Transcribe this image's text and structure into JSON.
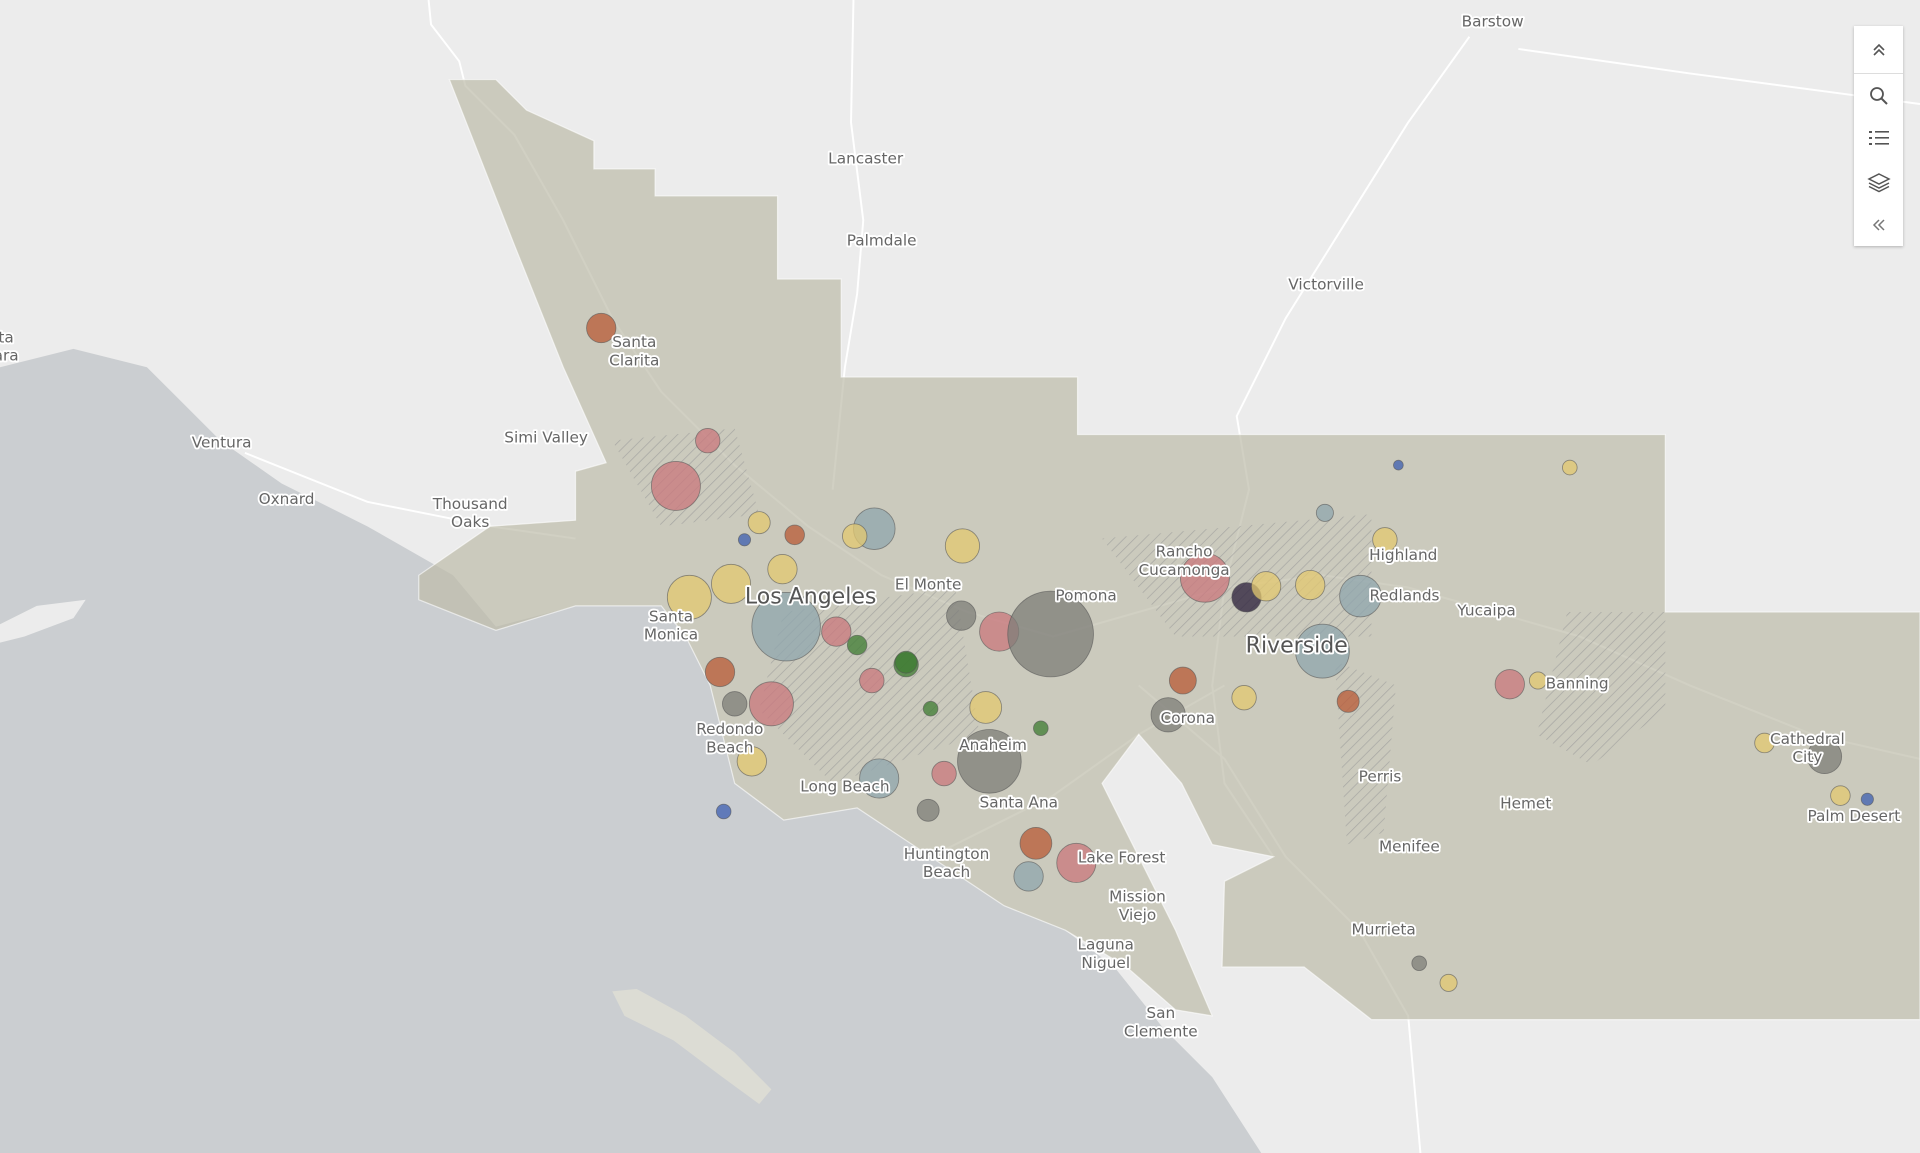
{
  "map": {
    "labels": [
      {
        "lines": [
          "Barstow"
        ]
      },
      {
        "lines": [
          "Lancaster"
        ]
      },
      {
        "lines": [
          "Palmdale"
        ]
      },
      {
        "lines": [
          "Victorville"
        ]
      },
      {
        "lines": [
          "Santa",
          "Clarita"
        ]
      },
      {
        "lines": [
          "Simi Valley"
        ]
      },
      {
        "lines": [
          "Ventura"
        ]
      },
      {
        "lines": [
          "Oxnard"
        ]
      },
      {
        "lines": [
          "Thousand",
          "Oaks"
        ]
      },
      {
        "lines": [
          "Los Angeles"
        ]
      },
      {
        "lines": [
          "El Monte"
        ]
      },
      {
        "lines": [
          "Pomona"
        ]
      },
      {
        "lines": [
          "Rancho",
          "Cucamonga"
        ]
      },
      {
        "lines": [
          "Highland"
        ]
      },
      {
        "lines": [
          "Redlands"
        ]
      },
      {
        "lines": [
          "Yucaipa"
        ]
      },
      {
        "lines": [
          "Riverside"
        ]
      },
      {
        "lines": [
          "Santa",
          "Monica"
        ]
      },
      {
        "lines": [
          "Redondo",
          "Beach"
        ]
      },
      {
        "lines": [
          "Long Beach"
        ]
      },
      {
        "lines": [
          "Anaheim"
        ]
      },
      {
        "lines": [
          "Santa Ana"
        ]
      },
      {
        "lines": [
          "Corona"
        ]
      },
      {
        "lines": [
          "Banning"
        ]
      },
      {
        "lines": [
          "Cathedral",
          "City"
        ]
      },
      {
        "lines": [
          "Palm Desert"
        ]
      },
      {
        "lines": [
          "Perris"
        ]
      },
      {
        "lines": [
          "Hemet"
        ]
      },
      {
        "lines": [
          "Menifee"
        ]
      },
      {
        "lines": [
          "Murrieta"
        ]
      },
      {
        "lines": [
          "Huntington",
          "Beach"
        ]
      },
      {
        "lines": [
          "Lake Forest"
        ]
      },
      {
        "lines": [
          "Mission",
          "Viejo"
        ]
      },
      {
        "lines": [
          "Laguna",
          "Niguel"
        ]
      },
      {
        "lines": [
          "San",
          "Clemente"
        ]
      },
      {
        "lines": [
          "ta",
          "ara"
        ]
      }
    ]
  }
}
